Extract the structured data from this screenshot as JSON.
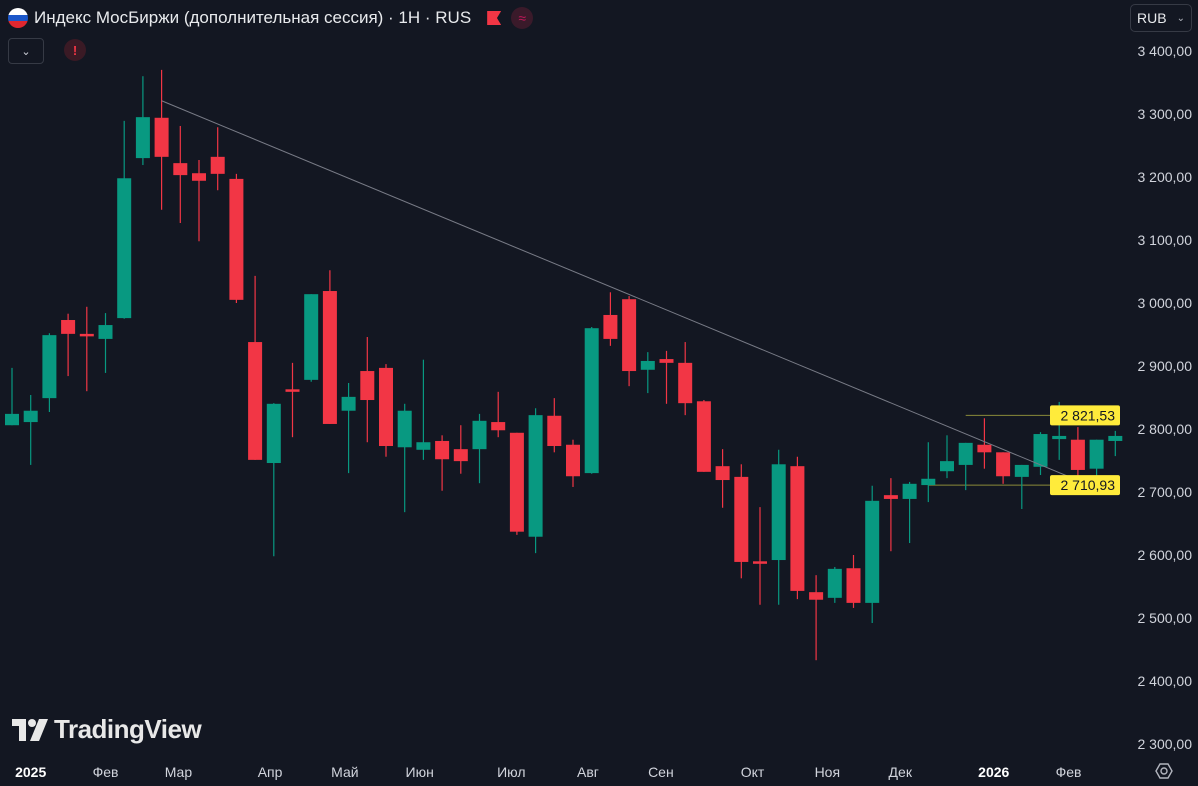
{
  "header": {
    "title": "Индекс МосБиржи (дополнительная сессия) · 1H · RUS",
    "flag_icon": "russia-flag-icon",
    "currency": "RUB",
    "alert_glyph": "!",
    "wave_glyph": "≈",
    "collapse_glyph": "⌄"
  },
  "watermark": "TradingView",
  "colors": {
    "up": "#089981",
    "down": "#f23645",
    "background": "#131722",
    "level": "#8a8a3a",
    "label_bg": "#ffeb3b"
  },
  "chart_data": {
    "type": "candlestick",
    "title": "Индекс МосБиржи (дополнительная сессия)",
    "ylim": [
      2300,
      3400
    ],
    "y_ticks": [
      {
        "value": 3400,
        "label": "3 400,00"
      },
      {
        "value": 3300,
        "label": "3 300,00"
      },
      {
        "value": 3200,
        "label": "3 200,00"
      },
      {
        "value": 3100,
        "label": "3 100,00"
      },
      {
        "value": 3000,
        "label": "3 000,00"
      },
      {
        "value": 2900,
        "label": "2 900,00"
      },
      {
        "value": 2800,
        "label": "2 800,00"
      },
      {
        "value": 2700,
        "label": "2 700,00"
      },
      {
        "value": 2600,
        "label": "2 600,00"
      },
      {
        "value": 2500,
        "label": "2 500,00"
      },
      {
        "value": 2400,
        "label": "2 400,00"
      },
      {
        "value": 2300,
        "label": "2 300,00"
      }
    ],
    "x_ticks": [
      {
        "index": 1,
        "label": "2025",
        "bold": true
      },
      {
        "index": 5,
        "label": "Фев"
      },
      {
        "index": 8.9,
        "label": "Мар"
      },
      {
        "index": 13.8,
        "label": "Апр"
      },
      {
        "index": 17.8,
        "label": "Май"
      },
      {
        "index": 21.8,
        "label": "Июн"
      },
      {
        "index": 26.7,
        "label": "Июл"
      },
      {
        "index": 30.8,
        "label": "Авг"
      },
      {
        "index": 34.7,
        "label": "Сен"
      },
      {
        "index": 39.6,
        "label": "Окт"
      },
      {
        "index": 43.6,
        "label": "Ноя"
      },
      {
        "index": 47.5,
        "label": "Дек"
      },
      {
        "index": 52.5,
        "label": "2026",
        "bold": true
      },
      {
        "index": 56.5,
        "label": "Фев"
      }
    ],
    "ohlc": [
      [
        2806,
        2897,
        2806,
        2824
      ],
      [
        2811,
        2854,
        2743,
        2829
      ],
      [
        2849,
        2952,
        2827,
        2949
      ],
      [
        2973,
        2983,
        2884,
        2951
      ],
      [
        2951,
        2994,
        2860,
        2948
      ],
      [
        2943,
        2984,
        2889,
        2965
      ],
      [
        2976,
        3289,
        2975,
        3198
      ],
      [
        3230,
        3360,
        3219,
        3295
      ],
      [
        3294,
        3370,
        3148,
        3232
      ],
      [
        3222,
        3281,
        3127,
        3203
      ],
      [
        3206,
        3227,
        3098,
        3194
      ],
      [
        3232,
        3279,
        3179,
        3205
      ],
      [
        3197,
        3205,
        3000,
        3005
      ],
      [
        2938,
        3043,
        2751,
        2751
      ],
      [
        2746,
        2841,
        2598,
        2840
      ],
      [
        2863,
        2905,
        2787,
        2860
      ],
      [
        2878,
        3014,
        2875,
        3014
      ],
      [
        3019,
        3052,
        2808,
        2808
      ],
      [
        2829,
        2873,
        2730,
        2851
      ],
      [
        2892,
        2946,
        2779,
        2846
      ],
      [
        2897,
        2903,
        2756,
        2773
      ],
      [
        2771,
        2840,
        2668,
        2829
      ],
      [
        2767,
        2910,
        2751,
        2779
      ],
      [
        2781,
        2790,
        2702,
        2752
      ],
      [
        2768,
        2806,
        2729,
        2749
      ],
      [
        2768,
        2824,
        2714,
        2813
      ],
      [
        2811,
        2859,
        2787,
        2798
      ],
      [
        2794,
        2794,
        2632,
        2637
      ],
      [
        2629,
        2833,
        2603,
        2822
      ],
      [
        2821,
        2849,
        2763,
        2773
      ],
      [
        2775,
        2783,
        2708,
        2725
      ],
      [
        2730,
        2962,
        2729,
        2960
      ],
      [
        2981,
        3017,
        2932,
        2943
      ],
      [
        3006,
        3011,
        2868,
        2892
      ],
      [
        2894,
        2922,
        2857,
        2908
      ],
      [
        2911,
        2924,
        2840,
        2905
      ],
      [
        2905,
        2938,
        2822,
        2841
      ],
      [
        2844,
        2846,
        2732,
        2732
      ],
      [
        2741,
        2768,
        2675,
        2719
      ],
      [
        2724,
        2744,
        2563,
        2589
      ],
      [
        2590,
        2676,
        2521,
        2587
      ],
      [
        2592,
        2767,
        2521,
        2744
      ],
      [
        2741,
        2756,
        2530,
        2543
      ],
      [
        2541,
        2568,
        2433,
        2529
      ],
      [
        2532,
        2581,
        2524,
        2578
      ],
      [
        2579,
        2600,
        2516,
        2524
      ],
      [
        2524,
        2710,
        2492,
        2686
      ],
      [
        2695,
        2722,
        2606,
        2689
      ],
      [
        2689,
        2716,
        2619,
        2713
      ],
      [
        2711,
        2779,
        2684,
        2721
      ],
      [
        2733,
        2790,
        2722,
        2749
      ],
      [
        2743,
        2778,
        2703,
        2778
      ],
      [
        2775,
        2817,
        2737,
        2763
      ],
      [
        2763,
        2763,
        2713,
        2725
      ],
      [
        2724,
        2743,
        2673,
        2743
      ],
      [
        2740,
        2795,
        2727,
        2792
      ],
      [
        2784,
        2843,
        2751,
        2789
      ],
      [
        2783,
        2803,
        2719,
        2735
      ],
      [
        2737,
        2783,
        2708,
        2783
      ],
      [
        2781,
        2797,
        2757,
        2789
      ]
    ],
    "trendline": {
      "from": {
        "index": 8,
        "price": 3321
      },
      "to": {
        "index": 58.5,
        "price": 2700
      }
    },
    "levels": [
      {
        "price": 2821.53,
        "label": "2 821,53",
        "from_index": 51
      },
      {
        "price": 2710.93,
        "label": "2 710,93",
        "from_index": 49
      }
    ]
  }
}
